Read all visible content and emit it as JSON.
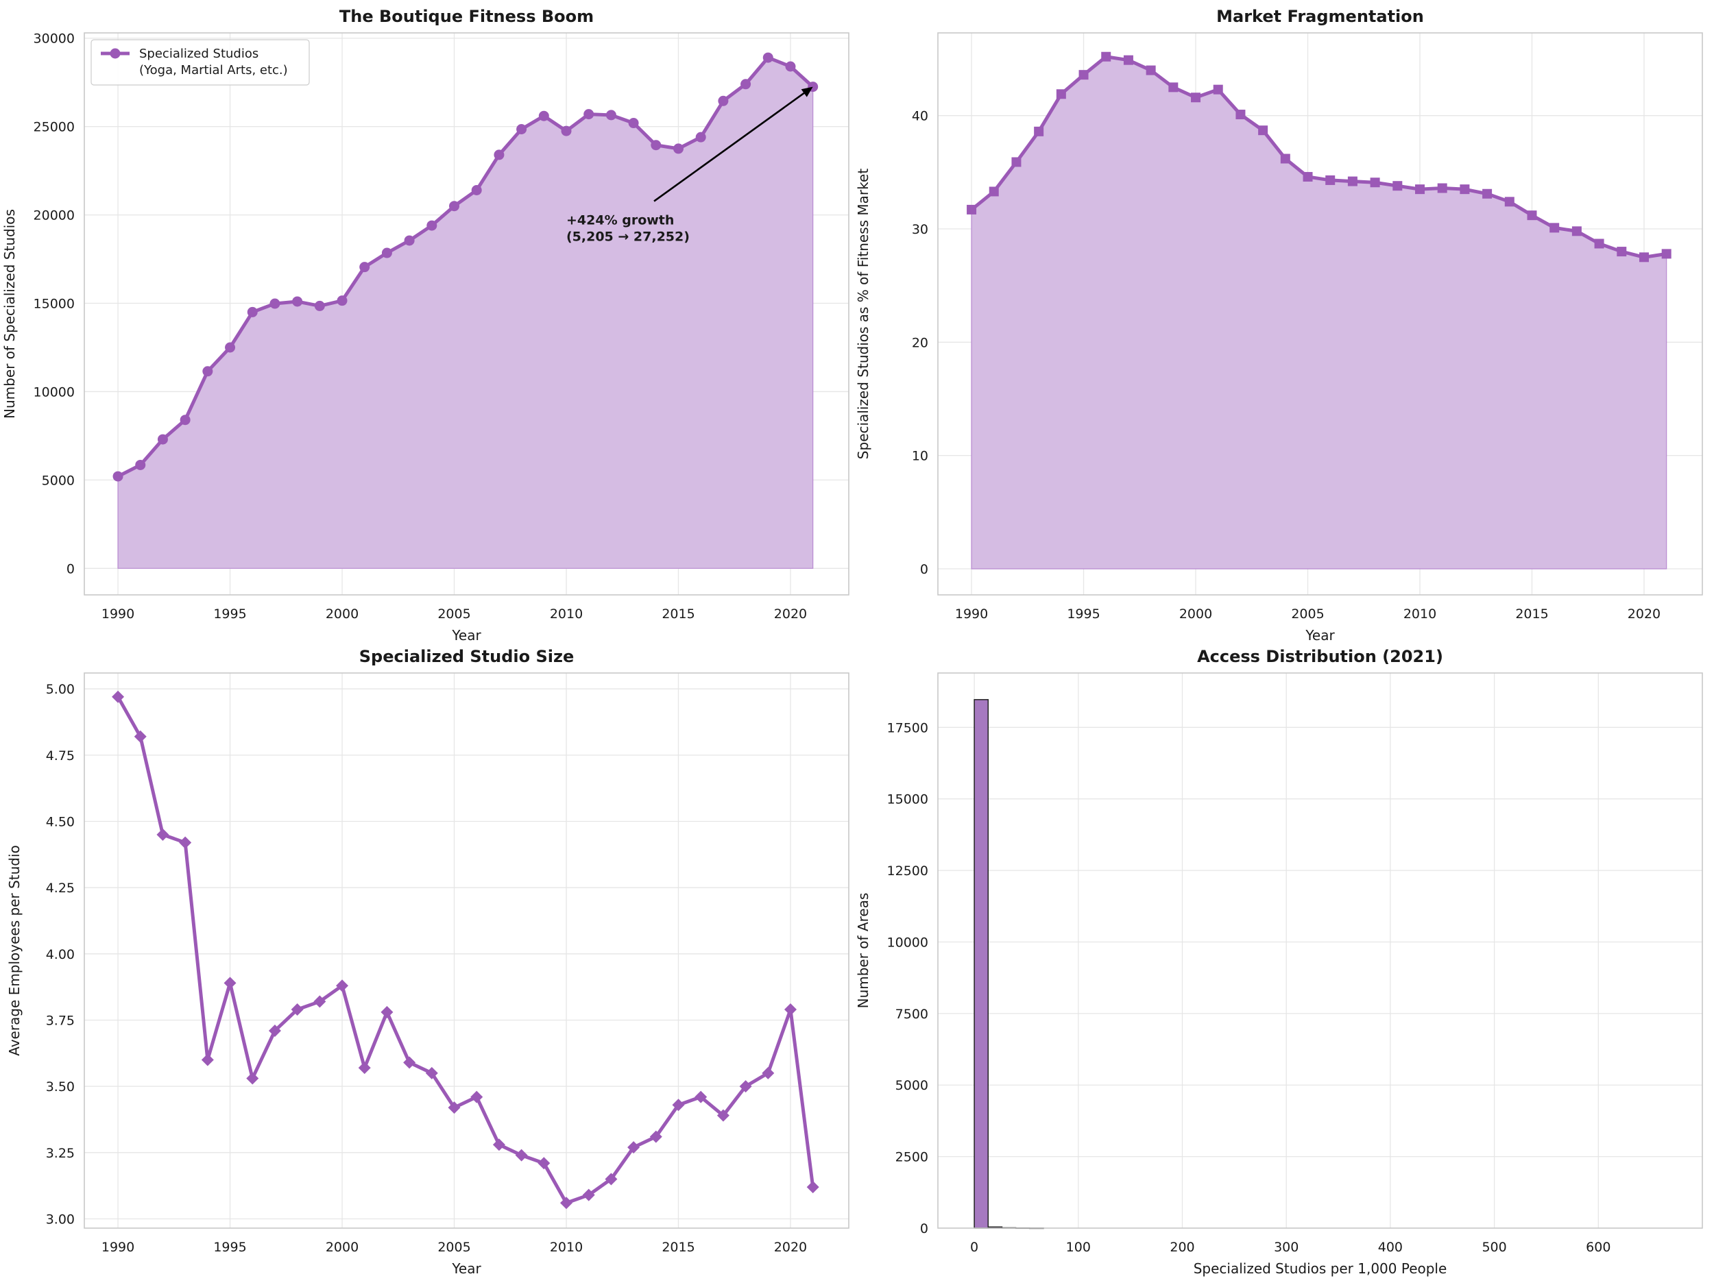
{
  "colors": {
    "series": "#9b59b6",
    "fill": "#d5bce3",
    "bar": "#a679c0",
    "bar_edge": "#222222"
  },
  "chart_data": [
    {
      "id": "p1",
      "type": "area",
      "title": "The Boutique Fitness Boom",
      "xlabel": "Year",
      "ylabel": "Number of Specialized Studios",
      "xlim": [
        1988.5,
        2022.6
      ],
      "ylim": [
        -1500,
        30300
      ],
      "xticks": [
        1990,
        1995,
        2000,
        2005,
        2010,
        2015,
        2020
      ],
      "yticks": [
        0,
        5000,
        10000,
        15000,
        20000,
        25000,
        30000
      ],
      "marker": "circle",
      "fill": true,
      "legend": {
        "position": "top-left",
        "line1": "Specialized Studios",
        "line2": "(Yoga, Martial Arts, etc.)"
      },
      "annotation": {
        "line1": "+424% growth",
        "line2": "(5,205 → 27,252)",
        "text_x": 2010,
        "text_y": 20000,
        "arrow_to_x": 2021,
        "arrow_to_y": 27252
      },
      "x": [
        1990,
        1991,
        1992,
        1993,
        1994,
        1995,
        1996,
        1997,
        1998,
        1999,
        2000,
        2001,
        2002,
        2003,
        2004,
        2005,
        2006,
        2007,
        2008,
        2009,
        2010,
        2011,
        2012,
        2013,
        2014,
        2015,
        2016,
        2017,
        2018,
        2019,
        2020,
        2021
      ],
      "y": [
        5205,
        5850,
        7300,
        8400,
        11150,
        12500,
        14500,
        14980,
        15100,
        14850,
        15150,
        17050,
        17850,
        18550,
        19400,
        20500,
        21400,
        23400,
        24850,
        25600,
        24750,
        25700,
        25650,
        25200,
        23950,
        23750,
        24400,
        26450,
        27400,
        28900,
        28400,
        27252
      ]
    },
    {
      "id": "p2",
      "type": "area",
      "title": "Market Fragmentation",
      "xlabel": "Year",
      "ylabel": "Specialized Studios as % of Fitness Market",
      "xlim": [
        1988.5,
        2022.6
      ],
      "ylim": [
        -2.3,
        47.3
      ],
      "xticks": [
        1990,
        1995,
        2000,
        2005,
        2010,
        2015,
        2020
      ],
      "yticks": [
        0,
        10,
        20,
        30,
        40
      ],
      "marker": "square",
      "fill": true,
      "x": [
        1990,
        1991,
        1992,
        1993,
        1994,
        1995,
        1996,
        1997,
        1998,
        1999,
        2000,
        2001,
        2002,
        2003,
        2004,
        2005,
        2006,
        2007,
        2008,
        2009,
        2010,
        2011,
        2012,
        2013,
        2014,
        2015,
        2016,
        2017,
        2018,
        2019,
        2020,
        2021
      ],
      "y": [
        31.7,
        33.3,
        35.9,
        38.6,
        41.9,
        43.6,
        45.2,
        44.9,
        44.0,
        42.5,
        41.6,
        42.3,
        40.1,
        38.7,
        36.2,
        34.6,
        34.3,
        34.2,
        34.1,
        33.8,
        33.5,
        33.6,
        33.5,
        33.1,
        32.4,
        31.2,
        30.1,
        29.8,
        28.7,
        28.0,
        27.5,
        27.8
      ]
    },
    {
      "id": "p3",
      "type": "line",
      "title": "Specialized Studio Size",
      "xlabel": "Year",
      "ylabel": "Average Employees per Studio",
      "xlim": [
        1988.5,
        2022.6
      ],
      "ylim": [
        2.965,
        5.06
      ],
      "xticks": [
        1990,
        1995,
        2000,
        2005,
        2010,
        2015,
        2020
      ],
      "yticks": [
        3.0,
        3.25,
        3.5,
        3.75,
        4.0,
        4.25,
        4.5,
        4.75,
        5.0
      ],
      "ytick_labels": [
        "3.00",
        "3.25",
        "3.50",
        "3.75",
        "4.00",
        "4.25",
        "4.50",
        "4.75",
        "5.00"
      ],
      "marker": "diamond",
      "fill": false,
      "x": [
        1990,
        1991,
        1992,
        1993,
        1994,
        1995,
        1996,
        1997,
        1998,
        1999,
        2000,
        2001,
        2002,
        2003,
        2004,
        2005,
        2006,
        2007,
        2008,
        2009,
        2010,
        2011,
        2012,
        2013,
        2014,
        2015,
        2016,
        2017,
        2018,
        2019,
        2020,
        2021
      ],
      "y": [
        4.97,
        4.82,
        4.45,
        4.42,
        3.6,
        3.89,
        3.53,
        3.71,
        3.79,
        3.82,
        3.88,
        3.57,
        3.78,
        3.59,
        3.55,
        3.42,
        3.46,
        3.28,
        3.24,
        3.21,
        3.06,
        3.09,
        3.15,
        3.27,
        3.31,
        3.43,
        3.46,
        3.39,
        3.5,
        3.55,
        3.79,
        3.12
      ]
    },
    {
      "id": "p4",
      "type": "bar",
      "title": "Access Distribution (2021)",
      "xlabel": "Specialized Studios per 1,000 People",
      "ylabel": "Number of Areas",
      "xlim": [
        -35,
        700
      ],
      "ylim": [
        0,
        19400
      ],
      "xticks": [
        0,
        100,
        200,
        300,
        400,
        500,
        600
      ],
      "yticks": [
        0,
        2500,
        5000,
        7500,
        10000,
        12500,
        15000,
        17500
      ],
      "bin_width": 13.3,
      "bins_start": [
        0,
        13.3,
        26.6,
        39.9,
        53.2
      ],
      "counts": [
        18470,
        40,
        12,
        5,
        2
      ]
    }
  ]
}
